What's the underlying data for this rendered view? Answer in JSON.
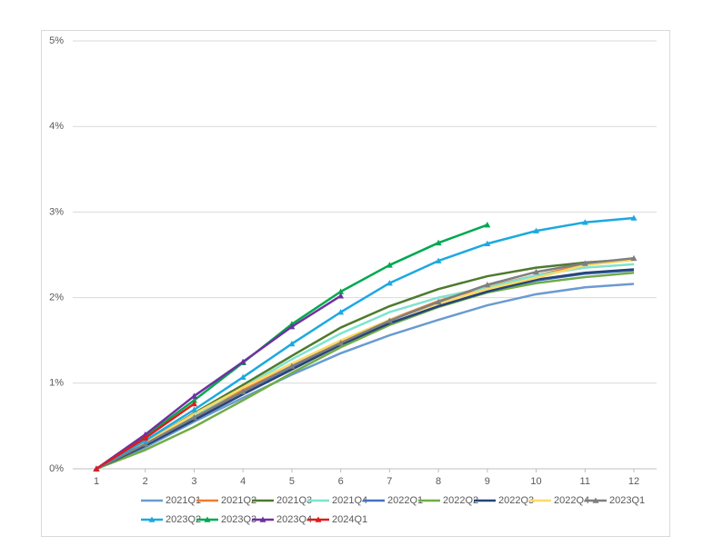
{
  "chart_data": {
    "type": "line",
    "x": [
      1,
      2,
      3,
      4,
      5,
      6,
      7,
      8,
      9,
      10,
      11,
      12
    ],
    "xlim": [
      1,
      12
    ],
    "xticks": [
      1,
      2,
      3,
      4,
      5,
      6,
      7,
      8,
      9,
      10,
      11,
      12
    ],
    "ylim": [
      0,
      5
    ],
    "yticks": [
      {
        "value": 0,
        "label": "0%"
      },
      {
        "value": 1,
        "label": "1%"
      },
      {
        "value": 2,
        "label": "2%"
      },
      {
        "value": 3,
        "label": "3%"
      },
      {
        "value": 4,
        "label": "4%"
      },
      {
        "value": 5,
        "label": "5%"
      }
    ],
    "grid": true,
    "legend": "bottom",
    "series": [
      {
        "name": "2021Q1",
        "color": "#6a9bd1",
        "values": [
          0,
          0.25,
          0.55,
          0.83,
          1.1,
          1.35,
          1.56,
          1.74,
          1.91,
          2.04,
          2.12,
          2.16
        ]
      },
      {
        "name": "2021Q2",
        "color": "#ed7d31",
        "values": [
          0,
          0.3,
          0.62,
          0.92,
          1.2,
          1.48,
          1.74,
          1.96,
          2.13,
          2.26,
          2.38,
          2.46
        ]
      },
      {
        "name": "2021Q3",
        "color": "#4e7a2e",
        "values": [
          0,
          0.3,
          0.65,
          0.98,
          1.32,
          1.65,
          1.9,
          2.1,
          2.25,
          2.35,
          2.41,
          2.45
        ]
      },
      {
        "name": "2021Q4",
        "color": "#7fe3cf",
        "values": [
          0,
          0.3,
          0.62,
          0.95,
          1.28,
          1.58,
          1.83,
          2.0,
          2.12,
          2.26,
          2.35,
          2.39
        ]
      },
      {
        "name": "2022Q1",
        "color": "#4472c4",
        "values": [
          0,
          0.28,
          0.58,
          0.88,
          1.17,
          1.45,
          1.7,
          1.9,
          2.07,
          2.2,
          2.28,
          2.32
        ]
      },
      {
        "name": "2022Q2",
        "color": "#70ad47",
        "values": [
          0,
          0.22,
          0.49,
          0.8,
          1.12,
          1.42,
          1.68,
          1.89,
          2.06,
          2.17,
          2.24,
          2.29
        ]
      },
      {
        "name": "2022Q3",
        "color": "#264478",
        "values": [
          0,
          0.27,
          0.57,
          0.87,
          1.16,
          1.45,
          1.7,
          1.9,
          2.07,
          2.21,
          2.29,
          2.33
        ]
      },
      {
        "name": "2022Q4",
        "color": "#ffd966",
        "values": [
          0,
          0.3,
          0.64,
          0.95,
          1.23,
          1.5,
          1.74,
          1.93,
          2.1,
          2.23,
          2.38,
          2.44
        ]
      },
      {
        "name": "2023Q1",
        "color": "#7f7f7f",
        "marker": "triangle",
        "values": [
          0,
          0.29,
          0.6,
          0.9,
          1.2,
          1.47,
          1.73,
          1.95,
          2.15,
          2.3,
          2.4,
          2.46
        ]
      },
      {
        "name": "2023Q2",
        "color": "#1ba9e1",
        "marker": "triangle",
        "values": [
          0,
          0.33,
          0.69,
          1.07,
          1.46,
          1.83,
          2.17,
          2.43,
          2.63,
          2.78,
          2.88,
          2.93
        ]
      },
      {
        "name": "2023Q3",
        "color": "#00a850",
        "marker": "triangle",
        "values": [
          0,
          0.38,
          0.8,
          1.24,
          1.69,
          2.07,
          2.38,
          2.64,
          2.85,
          null,
          null,
          null
        ]
      },
      {
        "name": "2023Q4",
        "color": "#7030a0",
        "marker": "triangle",
        "values": [
          0,
          0.4,
          0.85,
          1.25,
          1.66,
          2.02,
          null,
          null,
          null,
          null,
          null,
          null
        ]
      },
      {
        "name": "2024Q1",
        "color": "#e01b1b",
        "marker": "triangle",
        "values": [
          0,
          0.36,
          0.76,
          null,
          null,
          null,
          null,
          null,
          null,
          null,
          null,
          null
        ]
      }
    ]
  }
}
